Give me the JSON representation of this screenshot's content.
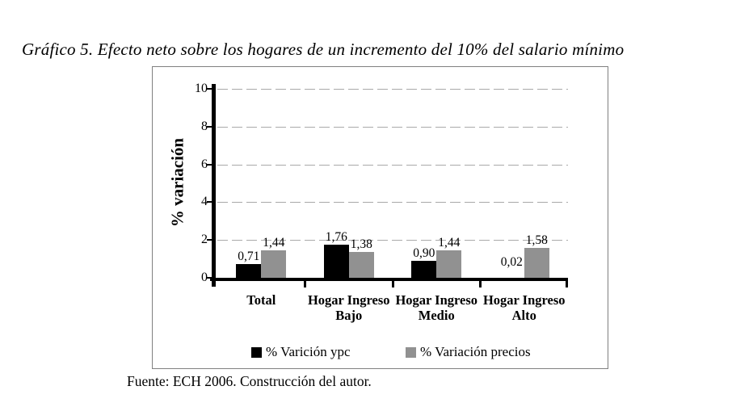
{
  "page": {
    "title": "Gráfico 5. Efecto neto sobre los hogares de un incremento del 10% del salario mínimo",
    "source_note": "Fuente: ECH 2006. Construcción del autor."
  },
  "colors": {
    "series_ypc": "#000000",
    "series_precios": "#919191",
    "gridline": "#a9a9a9",
    "axis": "#000000",
    "frame_border": "#808080",
    "background": "#ffffff"
  },
  "chart_data": {
    "type": "bar",
    "title": "",
    "categories": [
      "Total",
      "Hogar Ingreso Bajo",
      "Hogar Ingreso Medio",
      "Hogar Ingreso Alto"
    ],
    "categories_wrapped": [
      [
        "Total"
      ],
      [
        "Hogar Ingreso",
        "Bajo"
      ],
      [
        "Hogar Ingreso",
        "Medio"
      ],
      [
        "Hogar Ingreso",
        "Alto"
      ]
    ],
    "series": [
      {
        "name": "% Varición ypc",
        "color": "#000000",
        "values": [
          0.71,
          1.76,
          0.9,
          0.02
        ],
        "value_labels": [
          "0,71",
          "1,76",
          "0,90",
          "0,02"
        ]
      },
      {
        "name": "% Variación precios",
        "color": "#919191",
        "values": [
          1.44,
          1.38,
          1.44,
          1.58
        ],
        "value_labels": [
          "1,44",
          "1,38",
          "1,44",
          "1,58"
        ]
      }
    ],
    "xlabel": "",
    "ylabel": "% variación",
    "ylim": [
      0,
      10
    ],
    "yticks": [
      0,
      2,
      4,
      6,
      8,
      10
    ],
    "ytick_labels": [
      "0",
      "2",
      "4",
      "6",
      "8",
      "10"
    ],
    "grid": "horizontal-dashed",
    "legend_position": "bottom-inside",
    "decimal_separator": ","
  }
}
